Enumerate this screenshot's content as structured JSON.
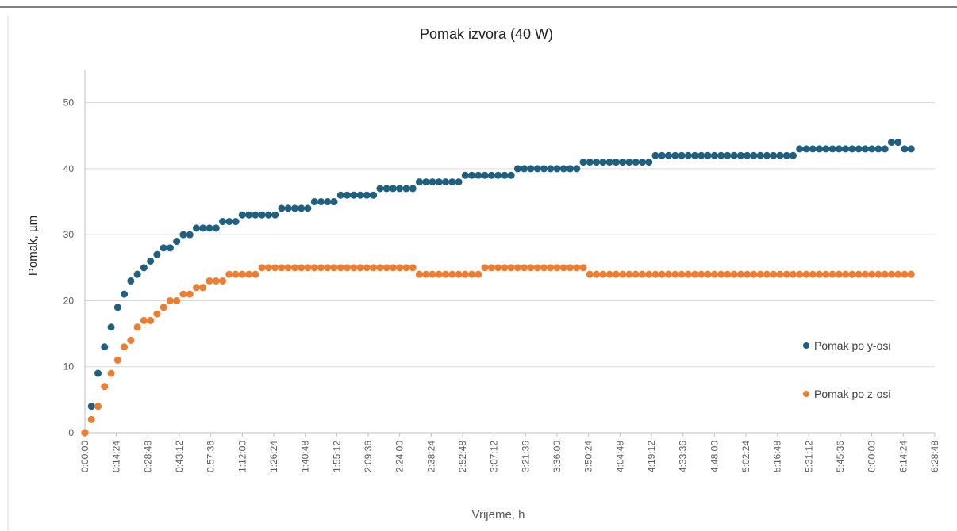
{
  "chart_data": {
    "type": "scatter",
    "title": "Pomak izvora (40 W)",
    "xlabel": "Vrijeme, h",
    "ylabel": "Pomak, µm",
    "x": [
      0,
      0.05,
      0.1,
      0.15,
      0.2,
      0.25,
      0.3,
      0.35,
      0.4,
      0.45,
      0.5,
      0.55,
      0.6,
      0.65,
      0.7,
      0.75,
      0.8,
      0.85,
      0.9,
      0.95,
      1,
      1.05,
      1.1,
      1.15,
      1.2,
      1.25,
      1.3,
      1.35,
      1.4,
      1.45,
      1.5,
      1.55,
      1.6,
      1.65,
      1.7,
      1.75,
      1.8,
      1.85,
      1.9,
      1.95,
      2,
      2.05,
      2.1,
      2.15,
      2.2,
      2.25,
      2.3,
      2.35,
      2.4,
      2.45,
      2.5,
      2.55,
      2.6,
      2.65,
      2.7,
      2.75,
      2.8,
      2.85,
      2.9,
      2.95,
      3,
      3.05,
      3.1,
      3.15,
      3.2,
      3.25,
      3.3,
      3.35,
      3.4,
      3.45,
      3.5,
      3.55,
      3.6,
      3.65,
      3.7,
      3.75,
      3.8,
      3.85,
      3.9,
      3.95,
      4,
      4.05,
      4.1,
      4.15,
      4.2,
      4.25,
      4.3,
      4.35,
      4.4,
      4.45,
      4.5,
      4.55,
      4.6,
      4.65,
      4.7,
      4.75,
      4.8,
      4.85,
      4.9,
      4.95,
      5,
      5.05,
      5.1,
      5.15,
      5.2,
      5.25,
      5.3,
      5.35,
      5.4,
      5.45,
      5.5,
      5.55,
      5.6,
      5.65,
      5.7,
      5.75,
      5.8,
      5.85,
      5.9,
      5.95,
      6,
      6.05,
      6.1,
      6.15,
      6.2,
      6.25,
      6.3
    ],
    "series": [
      {
        "name": "Pomak po y-osi",
        "color": "#1f5f80",
        "values": [
          0,
          4,
          9,
          13,
          16,
          19,
          21,
          23,
          24,
          25,
          26,
          27,
          28,
          28,
          29,
          30,
          30,
          31,
          31,
          31,
          31,
          32,
          32,
          32,
          33,
          33,
          33,
          33,
          33,
          33,
          34,
          34,
          34,
          34,
          34,
          35,
          35,
          35,
          35,
          36,
          36,
          36,
          36,
          36,
          36,
          37,
          37,
          37,
          37,
          37,
          37,
          38,
          38,
          38,
          38,
          38,
          38,
          38,
          39,
          39,
          39,
          39,
          39,
          39,
          39,
          39,
          40,
          40,
          40,
          40,
          40,
          40,
          40,
          40,
          40,
          40,
          41,
          41,
          41,
          41,
          41,
          41,
          41,
          41,
          41,
          41,
          41,
          42,
          42,
          42,
          42,
          42,
          42,
          42,
          42,
          42,
          42,
          42,
          42,
          42,
          42,
          42,
          42,
          42,
          42,
          42,
          42,
          42,
          42,
          43,
          43,
          43,
          43,
          43,
          43,
          43,
          43,
          43,
          43,
          43,
          43,
          43,
          43,
          44,
          44,
          43,
          43
        ]
      },
      {
        "name": "Pomak po z-osi",
        "color": "#ed7d31",
        "values": [
          0,
          2,
          4,
          7,
          9,
          11,
          13,
          14,
          16,
          17,
          17,
          18,
          19,
          20,
          20,
          21,
          21,
          22,
          22,
          23,
          23,
          23,
          24,
          24,
          24,
          24,
          24,
          25,
          25,
          25,
          25,
          25,
          25,
          25,
          25,
          25,
          25,
          25,
          25,
          25,
          25,
          25,
          25,
          25,
          25,
          25,
          25,
          25,
          25,
          25,
          25,
          24,
          24,
          24,
          24,
          24,
          24,
          24,
          24,
          24,
          24,
          25,
          25,
          25,
          25,
          25,
          25,
          25,
          25,
          25,
          25,
          25,
          25,
          25,
          25,
          25,
          25,
          24,
          24,
          24,
          24,
          24,
          24,
          24,
          24,
          24,
          24,
          24,
          24,
          24,
          24,
          24,
          24,
          24,
          24,
          24,
          24,
          24,
          24,
          24,
          24,
          24,
          24,
          24,
          24,
          24,
          24,
          24,
          24,
          24,
          24,
          24,
          24,
          24,
          24,
          24,
          24,
          24,
          24,
          24,
          24,
          24,
          24,
          24,
          24,
          24,
          24
        ]
      }
    ],
    "xlim": [
      0,
      6.48
    ],
    "xticks": [
      {
        "value": 0,
        "label": "0:00:00"
      },
      {
        "value": 0.24,
        "label": "0:14:24"
      },
      {
        "value": 0.48,
        "label": "0:28:48"
      },
      {
        "value": 0.72,
        "label": "0:43:12"
      },
      {
        "value": 0.96,
        "label": "0:57:36"
      },
      {
        "value": 1.2,
        "label": "1:12:00"
      },
      {
        "value": 1.44,
        "label": "1:26:24"
      },
      {
        "value": 1.68,
        "label": "1:40:48"
      },
      {
        "value": 1.92,
        "label": "1:55:12"
      },
      {
        "value": 2.16,
        "label": "2:09:36"
      },
      {
        "value": 2.4,
        "label": "2:24:00"
      },
      {
        "value": 2.64,
        "label": "2:38:24"
      },
      {
        "value": 2.88,
        "label": "2:52:48"
      },
      {
        "value": 3.12,
        "label": "3:07:12"
      },
      {
        "value": 3.36,
        "label": "3:21:36"
      },
      {
        "value": 3.6,
        "label": "3:36:00"
      },
      {
        "value": 3.84,
        "label": "3:50:24"
      },
      {
        "value": 4.08,
        "label": "4:04:48"
      },
      {
        "value": 4.32,
        "label": "4:19:12"
      },
      {
        "value": 4.56,
        "label": "4:33:36"
      },
      {
        "value": 4.8,
        "label": "4:48:00"
      },
      {
        "value": 5.04,
        "label": "5:02:24"
      },
      {
        "value": 5.28,
        "label": "5:16:48"
      },
      {
        "value": 5.52,
        "label": "5:31:12"
      },
      {
        "value": 5.76,
        "label": "5:45:36"
      },
      {
        "value": 6,
        "label": "6:00:00"
      },
      {
        "value": 6.24,
        "label": "6:14:24"
      },
      {
        "value": 6.48,
        "label": "6:28:48"
      }
    ],
    "ylim": [
      0,
      55
    ],
    "yticks": [
      0,
      10,
      20,
      30,
      40,
      50
    ],
    "grid": true,
    "legend": "right"
  }
}
